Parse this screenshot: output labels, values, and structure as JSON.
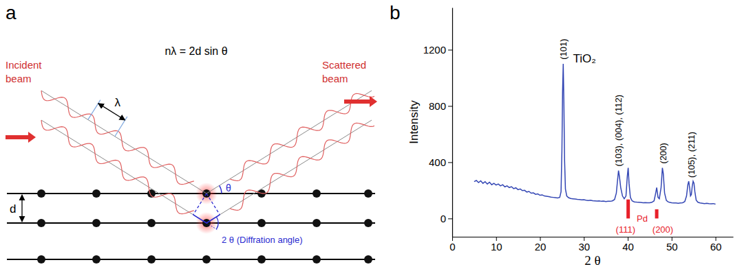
{
  "diagram": {
    "panel_label": "a",
    "equation": "nλ = 2d sin θ",
    "incident_label": "Incident beam",
    "scattered_label": "Scattered beam",
    "wavelength_label": "λ",
    "spacing_label": "d",
    "angle_label": "θ",
    "diffraction_angle_label": "2 θ (Diffration angle)"
  },
  "chart_data": {
    "type": "line",
    "panel_label": "b",
    "title": "TiO₂",
    "x_label": "2 θ",
    "y_label": "Intensity",
    "xlim": [
      0,
      64
    ],
    "ylim": [
      -130,
      1500
    ],
    "xticks": [
      0,
      10,
      20,
      30,
      40,
      50,
      60
    ],
    "yticks": [
      0,
      400,
      800,
      1200
    ],
    "series": [
      {
        "type": "line",
        "color": "#3346b4",
        "x": [
          5,
          5.5,
          6,
          6.5,
          7,
          7.5,
          8,
          8.5,
          9,
          9.5,
          10,
          10.5,
          11,
          11.5,
          12,
          12.5,
          13,
          13.5,
          14,
          14.5,
          15,
          15.5,
          16,
          16.5,
          17,
          17.5,
          18,
          18.5,
          19,
          19.5,
          20,
          20.5,
          21,
          21.5,
          22,
          22.5,
          23,
          23.5,
          24,
          24.5,
          24.8,
          25.0,
          25.15,
          25.3,
          25.45,
          25.6,
          25.8,
          26.1,
          26.5,
          27,
          27.5,
          28,
          28.5,
          29,
          29.5,
          30,
          30.5,
          31,
          31.5,
          32,
          32.5,
          33,
          33.5,
          34,
          34.5,
          35,
          35.5,
          36,
          36.5,
          37,
          37.4,
          37.7,
          37.9,
          38.1,
          38.4,
          38.8,
          39.2,
          39.6,
          39.9,
          40.1,
          40.3,
          40.6,
          41.0,
          41.5,
          42,
          42.5,
          43,
          43.5,
          44,
          44.5,
          45,
          45.5,
          46,
          46.3,
          46.6,
          46.9,
          47.2,
          47.6,
          47.9,
          48.1,
          48.4,
          48.8,
          49.2,
          49.5,
          50,
          50.5,
          51,
          51.5,
          52,
          52.5,
          53,
          53.4,
          53.7,
          53.9,
          54.1,
          54.3,
          54.5,
          54.7,
          54.9,
          55.1,
          55.3,
          55.6,
          56.0,
          56.5,
          57,
          57.5,
          58,
          58.5,
          59,
          59.5,
          60
        ],
        "values": [
          262,
          270,
          255,
          268,
          250,
          262,
          245,
          258,
          240,
          250,
          238,
          245,
          232,
          240,
          225,
          232,
          220,
          226,
          212,
          218,
          205,
          210,
          198,
          200,
          188,
          192,
          180,
          182,
          172,
          175,
          165,
          168,
          160,
          158,
          155,
          152,
          150,
          148,
          146,
          150,
          190,
          480,
          900,
          1100,
          820,
          420,
          210,
          160,
          148,
          142,
          140,
          138,
          136,
          135,
          132,
          133,
          130,
          128,
          130,
          126,
          125,
          124,
          125,
          122,
          124,
          120,
          122,
          122,
          125,
          135,
          180,
          280,
          340,
          300,
          220,
          160,
          140,
          160,
          300,
          360,
          250,
          150,
          125,
          118,
          116,
          115,
          114,
          112,
          113,
          112,
          112,
          115,
          125,
          170,
          220,
          150,
          140,
          220,
          360,
          320,
          180,
          128,
          118,
          115,
          112,
          110,
          110,
          108,
          110,
          112,
          120,
          160,
          240,
          265,
          220,
          160,
          170,
          230,
          265,
          250,
          190,
          130,
          115,
          110,
          108,
          106,
          108,
          105,
          104,
          106,
          102
        ]
      },
      {
        "type": "bar",
        "color": "#e8202a",
        "x": [
          40.1,
          46.6
        ],
        "values": [
          135,
          65
        ]
      }
    ],
    "peak_labels": [
      {
        "text": "(101)",
        "x": 25.3,
        "y": 1130
      },
      {
        "text": "(103), (004), (112)",
        "x": 37.9,
        "y": 370
      },
      {
        "text": "(200)",
        "x": 48.0,
        "y": 390
      },
      {
        "text": "(105), (211)",
        "x": 54.5,
        "y": 290
      }
    ],
    "annotations": [
      {
        "text": "(111)",
        "x": 39.5,
        "y": -100,
        "color": "#e8202a"
      },
      {
        "text": "Pd",
        "x": 43.3,
        "y": -25,
        "color": "#e8202a"
      },
      {
        "text": "(200)",
        "x": 48.0,
        "y": -100,
        "color": "#e8202a"
      }
    ]
  }
}
